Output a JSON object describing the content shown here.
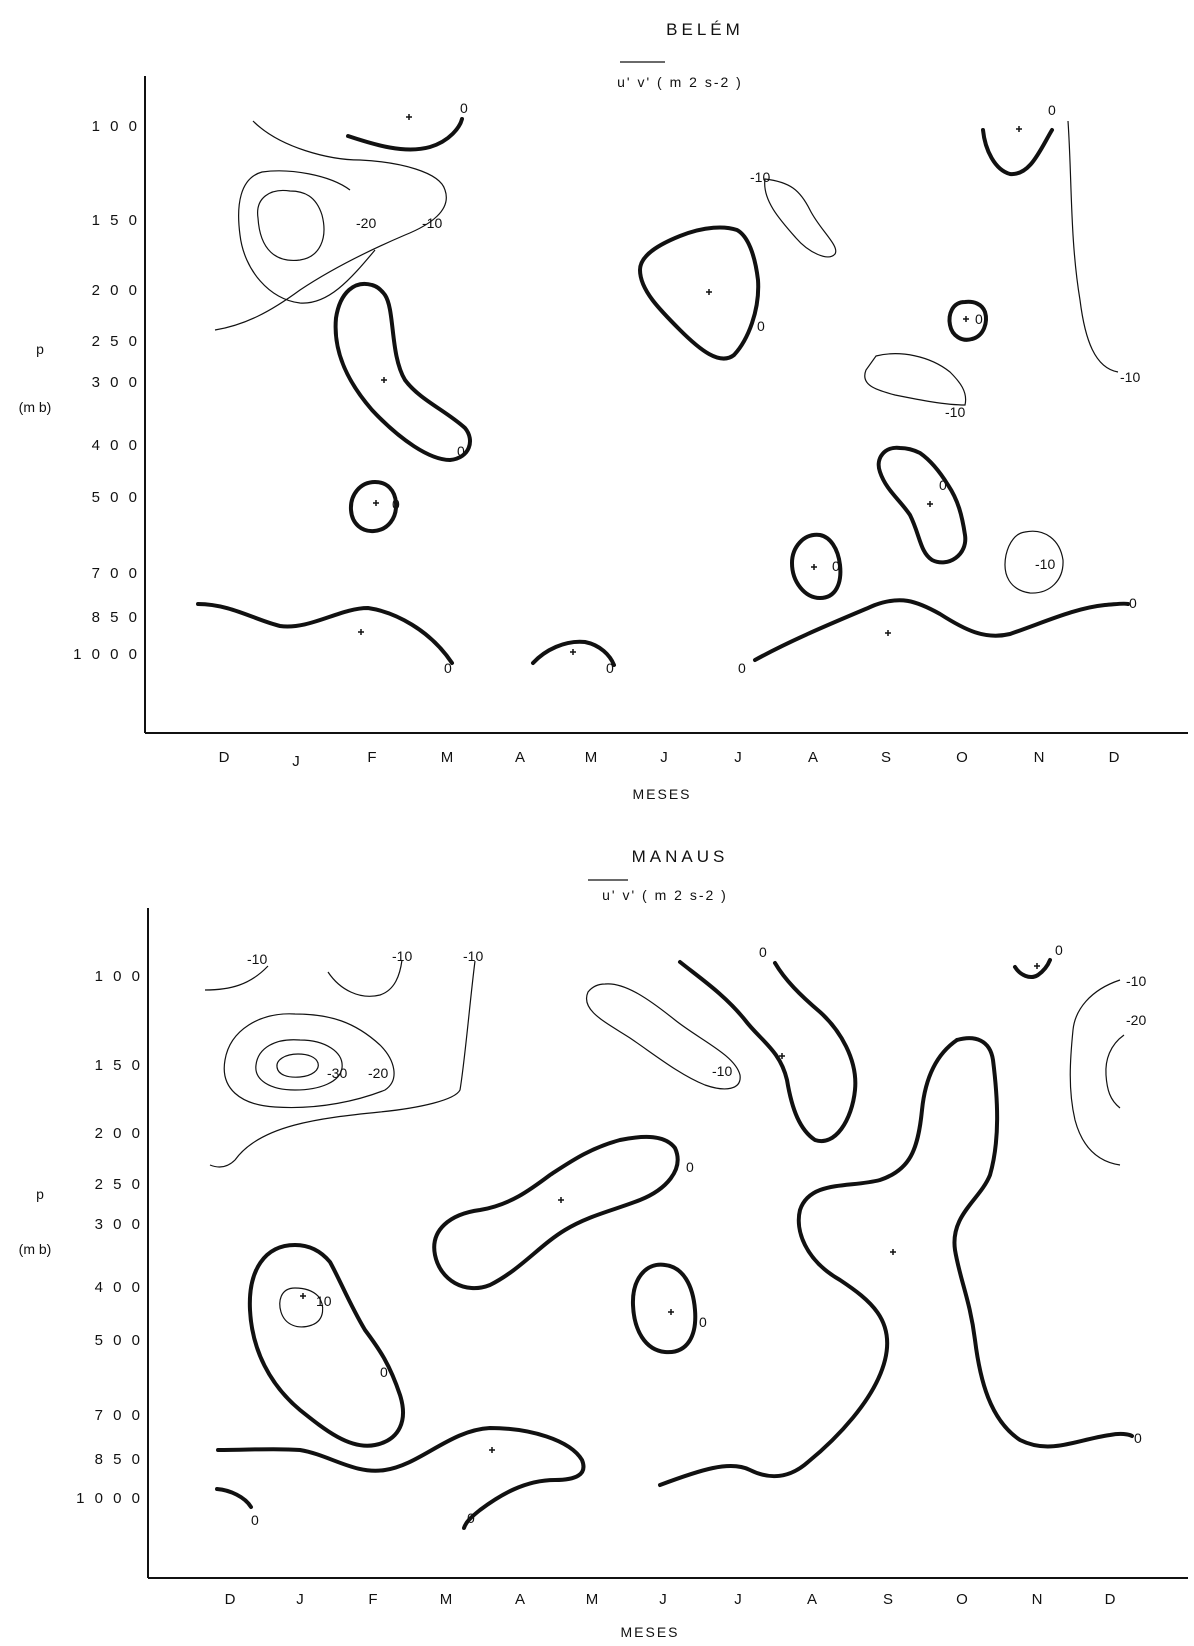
{
  "chart_data": [
    {
      "type": "contour",
      "title": "BELÉM",
      "subtitle": "u' v' ( m 2 s-2 )",
      "xlabel": "MESES",
      "ylabel": [
        "p",
        "(m b)"
      ],
      "categories": [
        "D",
        "J",
        "F",
        "M",
        "A",
        "M",
        "J",
        "J",
        "A",
        "S",
        "O",
        "N",
        "D"
      ],
      "y_ticks": [
        "1 0 0",
        "1 5 0",
        "2 0 0",
        "2 5 0",
        "3 0 0",
        "4 0 0",
        "5 0 0",
        "7 0 0",
        "8 5 0",
        "1 0 0 0"
      ],
      "contour_labels": [
        "0",
        "-20",
        "-10",
        "-10",
        "0",
        "0",
        "-10",
        "0",
        "-10",
        "0",
        "0",
        "0",
        "-10",
        "0",
        "0",
        "0",
        "0",
        "0"
      ]
    },
    {
      "type": "contour",
      "title": "MANAUS",
      "subtitle": "u' v' ( m 2 s-2 )",
      "xlabel": "MESES",
      "ylabel": [
        "p",
        "(m b)"
      ],
      "categories": [
        "D",
        "J",
        "F",
        "M",
        "A",
        "M",
        "J",
        "J",
        "A",
        "S",
        "O",
        "N",
        "D"
      ],
      "y_ticks": [
        "1 0 0",
        "1 5 0",
        "2 0 0",
        "2 5 0",
        "3 0 0",
        "4 0 0",
        "5 0 0",
        "7 0 0",
        "8 5 0",
        "1 0 0 0"
      ],
      "contour_labels": [
        "-10",
        "-10",
        "-10",
        "0",
        "0",
        "-10",
        "-20",
        "-30",
        "-20",
        "-10",
        "0",
        "0",
        "10",
        "0",
        "0",
        "0",
        "0",
        "0"
      ]
    }
  ]
}
